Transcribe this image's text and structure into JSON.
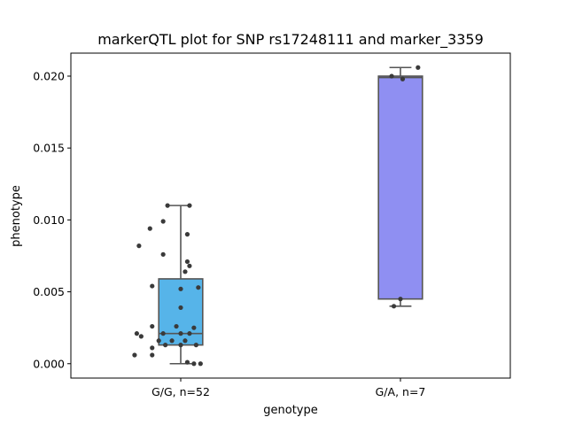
{
  "chart_data": {
    "type": "box",
    "title": "markerQTL plot for SNP rs17248111 and marker_3359",
    "xlabel": "genotype",
    "ylabel": "phenotype",
    "ylim": [
      -0.001,
      0.0216
    ],
    "yticks": [
      0.0,
      0.005,
      0.01,
      0.015,
      0.02
    ],
    "ytick_labels": [
      "0.000",
      "0.005",
      "0.010",
      "0.015",
      "0.020"
    ],
    "grid": false,
    "point_color": "#3a3a3a",
    "box_edge_color": "#555555",
    "categories": [
      "G/G, n=52",
      "G/A, n=7"
    ],
    "boxes": [
      {
        "category": "G/G, n=52",
        "color": "#56b4e9",
        "whisker_low": 0.0,
        "q1": 0.0013,
        "median": 0.0021,
        "q3": 0.0059,
        "whisker_high": 0.011,
        "points": [
          [
            -0.06,
            0.011
          ],
          [
            -0.08,
            0.0099
          ],
          [
            0.04,
            0.011
          ],
          [
            0.03,
            0.009
          ],
          [
            -0.14,
            0.0094
          ],
          [
            -0.19,
            0.0082
          ],
          [
            -0.08,
            0.0076
          ],
          [
            0.03,
            0.0071
          ],
          [
            0.02,
            0.0064
          ],
          [
            0.04,
            0.0068
          ],
          [
            -0.13,
            0.0054
          ],
          [
            0.0,
            0.0052
          ],
          [
            0.08,
            0.0053
          ],
          [
            0.0,
            0.0039
          ],
          [
            -0.13,
            0.0026
          ],
          [
            -0.02,
            0.0026
          ],
          [
            0.06,
            0.0025
          ],
          [
            -0.2,
            0.0021
          ],
          [
            -0.18,
            0.0019
          ],
          [
            -0.08,
            0.0021
          ],
          [
            0.0,
            0.0021
          ],
          [
            0.04,
            0.0021
          ],
          [
            -0.1,
            0.0016
          ],
          [
            -0.04,
            0.0016
          ],
          [
            0.02,
            0.0016
          ],
          [
            -0.13,
            0.0011
          ],
          [
            -0.07,
            0.0013
          ],
          [
            0.0,
            0.0013
          ],
          [
            0.07,
            0.0013
          ],
          [
            -0.21,
            0.0006
          ],
          [
            -0.13,
            0.0006
          ],
          [
            0.03,
            0.0001
          ],
          [
            0.06,
            0.0
          ],
          [
            0.09,
            0.0
          ]
        ]
      },
      {
        "category": "G/A, n=7",
        "color": "#8f8ff2",
        "whisker_low": 0.004,
        "q1": 0.0045,
        "median": 0.0199,
        "q3": 0.02,
        "whisker_high": 0.0206,
        "points": [
          [
            -0.04,
            0.02
          ],
          [
            0.08,
            0.0206
          ],
          [
            0.01,
            0.0198
          ],
          [
            -0.03,
            0.004
          ],
          [
            0.0,
            0.0045
          ]
        ]
      }
    ]
  }
}
